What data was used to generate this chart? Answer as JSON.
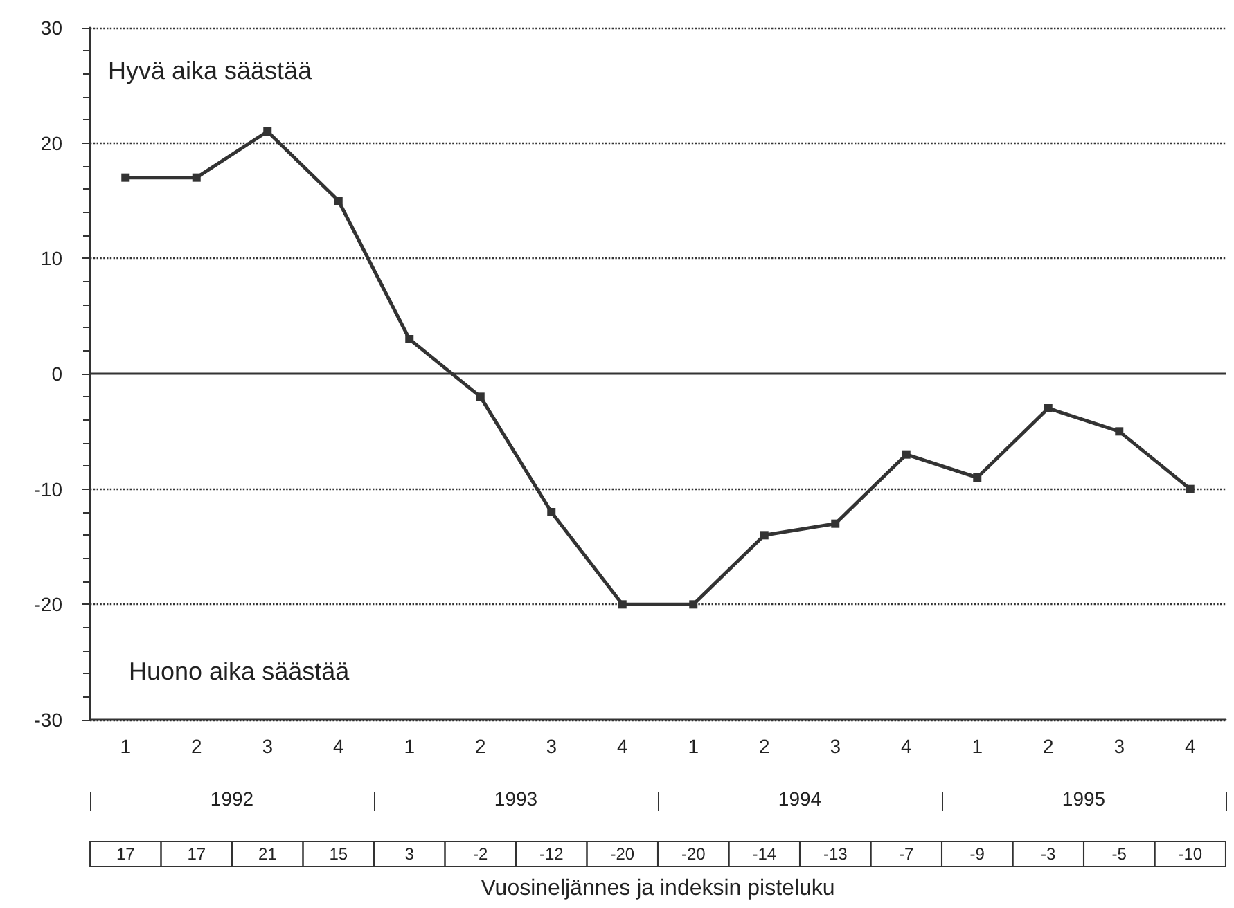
{
  "chart_data": {
    "type": "line",
    "categories": [
      "1",
      "2",
      "3",
      "4",
      "1",
      "2",
      "3",
      "4",
      "1",
      "2",
      "3",
      "4",
      "1",
      "2",
      "3",
      "4"
    ],
    "series": [
      {
        "color": "#333333",
        "values": [
          17,
          17,
          21,
          15,
          3,
          -2,
          -12,
          -20,
          -20,
          -14,
          -13,
          -7,
          -9,
          -3,
          -5,
          -10
        ]
      }
    ],
    "ylim": [
      -30,
      30
    ],
    "yticks": [
      -30,
      -20,
      -10,
      0,
      10,
      20,
      30
    ],
    "grid": "y",
    "marker": "square",
    "line_style": "solid",
    "data_labels": true,
    "ref_lines": [
      {
        "axis": "y",
        "value": 0,
        "color": "#333333",
        "line_style": "solid"
      }
    ],
    "annotations": [
      "Hyvä aika säästää",
      "Huono aika säästää",
      "Vuosineljännes ja indeksin pisteluku",
      "1992",
      "1993",
      "1994",
      "1995"
    ]
  }
}
